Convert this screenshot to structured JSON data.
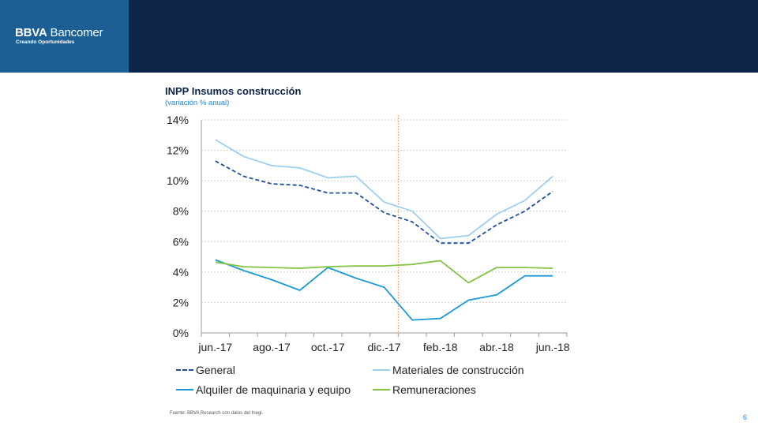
{
  "brand": {
    "name_bold": "BBVA",
    "name_rest": " Bancomer",
    "tagline": "Creando Oportunidades"
  },
  "chart_data": {
    "type": "line",
    "title": "INPP Insumos construcción",
    "subtitle": "(variación % anual)",
    "xlabel": "",
    "ylabel": "",
    "ylim": [
      0,
      14
    ],
    "yticks": [
      0,
      2,
      4,
      6,
      8,
      10,
      12,
      14
    ],
    "ytick_labels": [
      "0%",
      "2%",
      "4%",
      "6%",
      "8%",
      "10%",
      "12%",
      "14%"
    ],
    "grid": true,
    "categories": [
      "jun.-17",
      "jul.-17",
      "ago.-17",
      "sep.-17",
      "oct.-17",
      "nov.-17",
      "dic.-17",
      "ene.-18",
      "feb.-18",
      "mar.-18",
      "abr.-18",
      "may.-18",
      "jun.-18"
    ],
    "xtick_labels": [
      "jun.-17",
      "",
      "ago.-17",
      "",
      "oct.-17",
      "",
      "dic.-17",
      "",
      "feb.-18",
      "",
      "abr.-18",
      "",
      "jun.-18"
    ],
    "reference_line": {
      "between_categories": [
        "dic.-17",
        "ene.-18"
      ],
      "color": "#e8833a",
      "style": "dotted"
    },
    "series": [
      {
        "name": "General",
        "color": "#1f4e9c",
        "dash": "dashed",
        "values": [
          11.3,
          10.3,
          9.8,
          9.7,
          9.2,
          9.2,
          7.9,
          7.3,
          5.9,
          5.9,
          7.1,
          8.0,
          9.3
        ]
      },
      {
        "name": "Materiales de construcción",
        "color": "#9fcfee",
        "dash": "solid",
        "values": [
          12.7,
          11.6,
          11.0,
          10.85,
          10.2,
          10.3,
          8.6,
          8.0,
          6.2,
          6.4,
          7.8,
          8.7,
          10.3
        ]
      },
      {
        "name": "Alquiler de maquinaria y equipo",
        "color": "#1a9ad6",
        "dash": "solid",
        "values": [
          4.8,
          4.1,
          3.5,
          2.8,
          4.3,
          3.6,
          3.0,
          0.85,
          0.95,
          2.15,
          2.5,
          3.75,
          3.75
        ]
      },
      {
        "name": "Remuneraciones",
        "color": "#84c341",
        "dash": "solid",
        "values": [
          4.65,
          4.35,
          4.3,
          4.25,
          4.35,
          4.4,
          4.4,
          4.5,
          4.75,
          3.3,
          4.3,
          4.3,
          4.25
        ]
      }
    ],
    "legend_position": "bottom"
  },
  "footer": {
    "source": "Fuente: BBVA Research con datos del Inegi.",
    "page_number": "6"
  }
}
